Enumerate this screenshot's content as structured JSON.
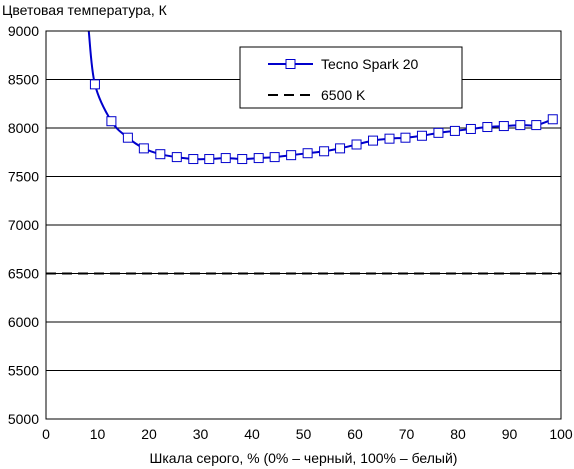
{
  "chart_data": {
    "type": "line",
    "ylabel": "Цветовая температура, К",
    "xlabel": "Шкала серого, % (0% – черный, 100% – белый)",
    "xlim": [
      0,
      100
    ],
    "ylim": [
      5000,
      9000
    ],
    "x_ticks": [
      0,
      10,
      20,
      30,
      40,
      50,
      60,
      70,
      80,
      90,
      100
    ],
    "y_ticks": [
      5000,
      5500,
      6000,
      6500,
      7000,
      7500,
      8000,
      8500,
      9000
    ],
    "grid": "horizontal",
    "legend_position": "top-right",
    "series": [
      {
        "name": "Tecno Spark 20",
        "color": "#0000cc",
        "marker": "square",
        "x": [
          9.5,
          12.7,
          15.9,
          19.0,
          22.2,
          25.4,
          28.6,
          31.7,
          34.9,
          38.1,
          41.3,
          44.4,
          47.6,
          50.8,
          54.0,
          57.1,
          60.3,
          63.5,
          66.7,
          69.8,
          73.0,
          76.2,
          79.4,
          82.5,
          85.7,
          88.9,
          92.1,
          95.2,
          98.4
        ],
        "y": [
          8450,
          8070,
          7900,
          7790,
          7730,
          7700,
          7680,
          7680,
          7690,
          7680,
          7690,
          7700,
          7720,
          7740,
          7760,
          7790,
          7830,
          7870,
          7890,
          7900,
          7920,
          7950,
          7970,
          7990,
          8010,
          8020,
          8030,
          8030,
          8090
        ],
        "curve_lead_in": {
          "x": 8.3,
          "y": 9000
        }
      },
      {
        "name": "6500 K",
        "color": "#000000",
        "dash": "dashed",
        "x": [
          0,
          100
        ],
        "y": [
          6500,
          6500
        ]
      }
    ]
  }
}
